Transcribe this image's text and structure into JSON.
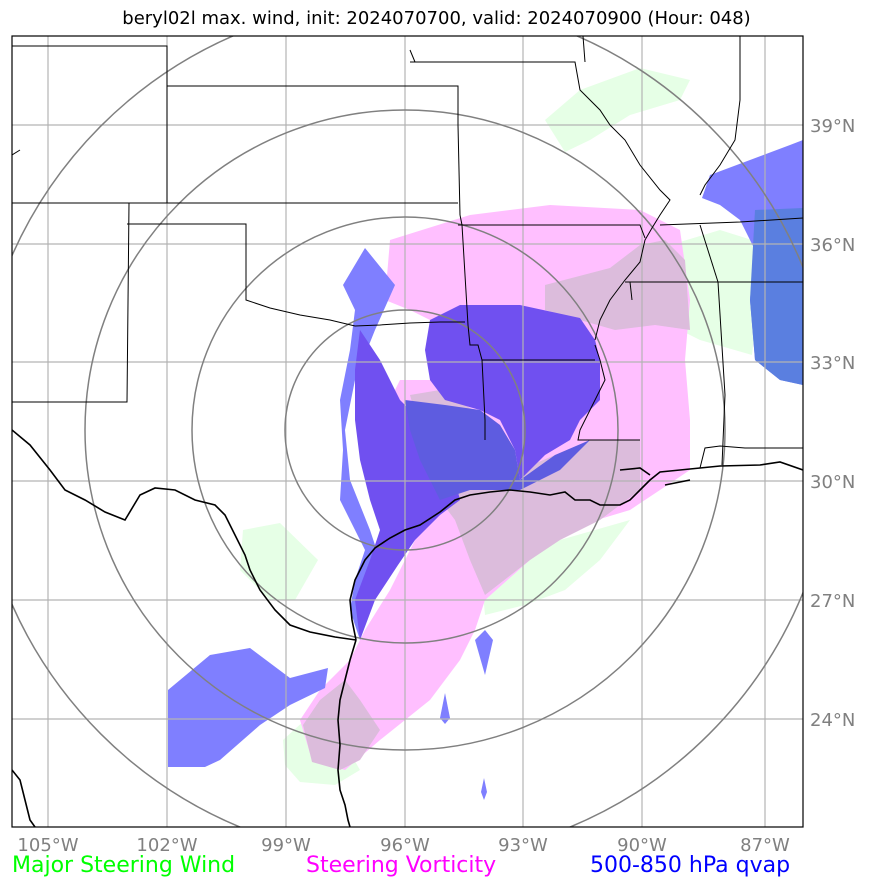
{
  "title": "beryl02l max. wind, init: 2024070700, valid: 2024070900 (Hour: 048)",
  "lon_labels": [
    "105°W",
    "102°W",
    "99°W",
    "96°W",
    "93°W",
    "90°W",
    "87°W"
  ],
  "lat_labels": [
    "39°N",
    "36°N",
    "33°N",
    "30°N",
    "27°N",
    "24°N"
  ],
  "legend": {
    "wind": {
      "label": "Major Steering Wind",
      "color": "#00ff00"
    },
    "vort": {
      "label": "Steering Vorticity",
      "color": "#ff00ff"
    },
    "qvap": {
      "label": "500-850 hPa qvap",
      "color": "#0000ff"
    }
  },
  "colors": {
    "wind_fill": "#e6ffe6",
    "vort_fill": "#ffbfff",
    "qvap_fill": "#7f7fff",
    "qvap_dark": "#7050f0",
    "overlap_fill": "#dcbcdc",
    "range_ring": "#808080",
    "gridline": "#b3b3b3",
    "boundary": "#000000"
  },
  "map": {
    "lon_range": [
      -106,
      -86
    ],
    "lat_range": [
      21.5,
      41
    ]
  }
}
